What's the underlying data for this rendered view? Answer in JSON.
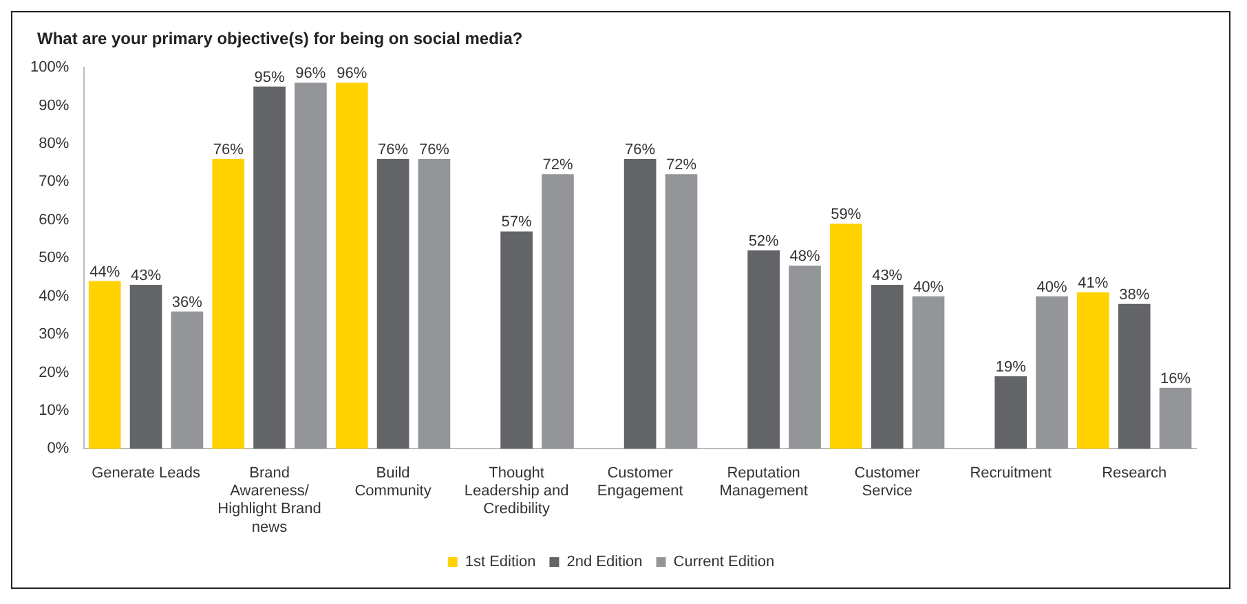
{
  "chart_data": {
    "type": "bar",
    "title": "What are your primary objective(s) for being on social media?",
    "categories": [
      "Generate Leads",
      "Brand Awareness/ Highlight Brand news",
      "Build Community",
      "Thought Leadership and Credibility",
      "Customer Engagement",
      "Reputation Management",
      "Customer Service",
      "Recruitment",
      "Research"
    ],
    "series": [
      {
        "name": "1st Edition",
        "color": "#ffd200",
        "values": [
          44,
          76,
          96,
          null,
          null,
          null,
          59,
          null,
          41
        ],
        "value_labels": [
          "44%",
          "76%",
          "96%",
          null,
          null,
          null,
          "59%",
          null,
          "41%"
        ]
      },
      {
        "name": "2nd Edition",
        "color": "#636467",
        "values": [
          43,
          95,
          76,
          57,
          76,
          52,
          43,
          19,
          38
        ],
        "value_labels": [
          "43%",
          "95%",
          "76%",
          "57%",
          "76%",
          "52%",
          "43%",
          "19%",
          "38%"
        ]
      },
      {
        "name": "Current Edition",
        "color": "#939598",
        "values": [
          36,
          96,
          76,
          72,
          72,
          48,
          40,
          40,
          16
        ],
        "value_labels": [
          "36%",
          "96%",
          "76%",
          "72%",
          "72%",
          "48%",
          "40%",
          "40%",
          "16%"
        ]
      }
    ],
    "ylim": [
      0,
      100
    ],
    "yticks": [
      {
        "value": 0,
        "label": "0%"
      },
      {
        "value": 10,
        "label": "10%"
      },
      {
        "value": 20,
        "label": "20%"
      },
      {
        "value": 30,
        "label": "30%"
      },
      {
        "value": 40,
        "label": "40%"
      },
      {
        "value": 50,
        "label": "50%"
      },
      {
        "value": 60,
        "label": "60%"
      },
      {
        "value": 70,
        "label": "70%"
      },
      {
        "value": 80,
        "label": "80%"
      },
      {
        "value": 90,
        "label": "90%"
      },
      {
        "value": 100,
        "label": "100%"
      }
    ],
    "grid": false,
    "legend": "bottom"
  }
}
